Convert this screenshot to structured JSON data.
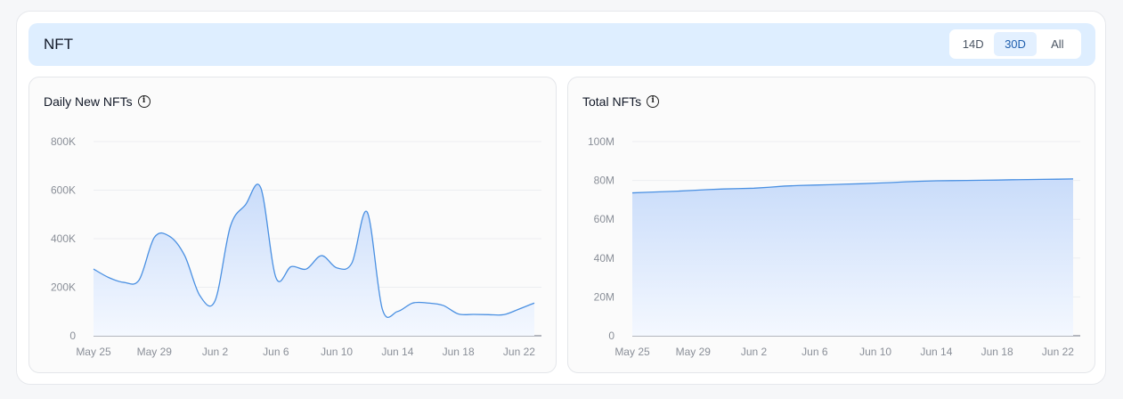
{
  "header": {
    "title": "NFT",
    "ranges": [
      {
        "label": "14D",
        "active": false
      },
      {
        "label": "30D",
        "active": true
      },
      {
        "label": "All",
        "active": false
      }
    ]
  },
  "colors": {
    "accent": "#4a90e2",
    "fill_top": "#c9dcfa",
    "fill_bottom": "#f4f8ff",
    "header_bg": "#deeeff",
    "active_tab_text": "#1f5fae"
  },
  "chart_data": [
    {
      "type": "area",
      "title": "Daily New NFTs",
      "info_icon": "info-icon",
      "x": [
        "May 25",
        "May 26",
        "May 27",
        "May 28",
        "May 29",
        "May 30",
        "May 31",
        "Jun 1",
        "Jun 2",
        "Jun 3",
        "Jun 4",
        "Jun 5",
        "Jun 6",
        "Jun 7",
        "Jun 8",
        "Jun 9",
        "Jun 10",
        "Jun 11",
        "Jun 12",
        "Jun 13",
        "Jun 14",
        "Jun 15",
        "Jun 16",
        "Jun 17",
        "Jun 18",
        "Jun 19",
        "Jun 20",
        "Jun 21",
        "Jun 22",
        "Jun 23"
      ],
      "series": [
        {
          "values": [
            275000,
            240000,
            220000,
            230000,
            405000,
            410000,
            330000,
            165000,
            145000,
            450000,
            540000,
            610000,
            240000,
            285000,
            275000,
            330000,
            280000,
            300000,
            510000,
            110000,
            100000,
            135000,
            135000,
            125000,
            90000,
            88000,
            87000,
            87000,
            110000,
            135000
          ]
        }
      ],
      "x_ticks": [
        "May 25",
        "May 29",
        "Jun 2",
        "Jun 6",
        "Jun 10",
        "Jun 14",
        "Jun 18",
        "Jun 22"
      ],
      "y_ticks": [
        "0",
        "200K",
        "400K",
        "600K",
        "800K"
      ],
      "ylim": [
        0,
        800000
      ],
      "grid": true
    },
    {
      "type": "area",
      "title": "Total NFTs",
      "info_icon": "info-icon",
      "x": [
        "May 25",
        "May 26",
        "May 27",
        "May 28",
        "May 29",
        "May 30",
        "May 31",
        "Jun 1",
        "Jun 2",
        "Jun 3",
        "Jun 4",
        "Jun 5",
        "Jun 6",
        "Jun 7",
        "Jun 8",
        "Jun 9",
        "Jun 10",
        "Jun 11",
        "Jun 12",
        "Jun 13",
        "Jun 14",
        "Jun 15",
        "Jun 16",
        "Jun 17",
        "Jun 18",
        "Jun 19",
        "Jun 20",
        "Jun 21",
        "Jun 22",
        "Jun 23"
      ],
      "series": [
        {
          "values": [
            73600000,
            73900000,
            74200000,
            74500000,
            74900000,
            75300000,
            75600000,
            75800000,
            76000000,
            76500000,
            77100000,
            77400000,
            77600000,
            77800000,
            78100000,
            78300000,
            78600000,
            78900000,
            79300000,
            79600000,
            79800000,
            79900000,
            80000000,
            80100000,
            80200000,
            80350000,
            80450000,
            80550000,
            80650000,
            80800000
          ]
        }
      ],
      "x_ticks": [
        "May 25",
        "May 29",
        "Jun 2",
        "Jun 6",
        "Jun 10",
        "Jun 14",
        "Jun 18",
        "Jun 22"
      ],
      "y_ticks": [
        "0",
        "20M",
        "40M",
        "60M",
        "80M",
        "100M"
      ],
      "ylim": [
        0,
        100000000
      ],
      "grid": true
    }
  ]
}
